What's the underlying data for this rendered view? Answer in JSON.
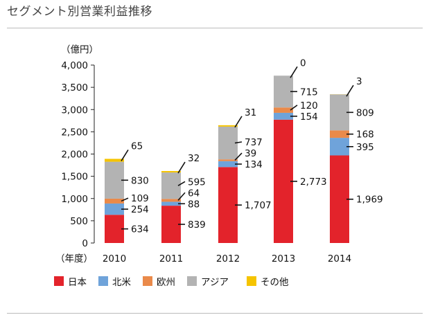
{
  "title": "セグメント別営業利益推移",
  "chart_data": {
    "type": "bar",
    "stacked": true,
    "title": "セグメント別営業利益推移",
    "ylabel": "（億円）",
    "xlabel": "（年度）",
    "ylim": [
      0,
      4000
    ],
    "yticks": [
      "0",
      "500",
      "1,000",
      "1,500",
      "2,000",
      "2,500",
      "3,000",
      "3,500",
      "4,000"
    ],
    "categories": [
      "2010",
      "2011",
      "2012",
      "2013",
      "2014"
    ],
    "series": [
      {
        "name": "日本",
        "color": "#e3232b",
        "values": [
          634,
          839,
          1707,
          2773,
          1969
        ],
        "labels": [
          "634",
          "839",
          "1,707",
          "2,773",
          "1,969"
        ]
      },
      {
        "name": "北米",
        "color": "#6fa3da",
        "values": [
          254,
          88,
          134,
          154,
          395
        ],
        "labels": [
          "254",
          "88",
          "134",
          "154",
          "395"
        ]
      },
      {
        "name": "欧州",
        "color": "#ea8a4a",
        "values": [
          109,
          64,
          39,
          120,
          168
        ],
        "labels": [
          "109",
          "64",
          "39",
          "120",
          "168"
        ]
      },
      {
        "name": "アジア",
        "color": "#b3b3b3",
        "values": [
          830,
          595,
          737,
          715,
          809
        ],
        "labels": [
          "830",
          "595",
          "737",
          "715",
          "809"
        ]
      },
      {
        "name": "その他",
        "color": "#f5c400",
        "values": [
          65,
          32,
          31,
          0,
          3
        ],
        "labels": [
          "65",
          "32",
          "31",
          "0",
          "3"
        ]
      }
    ],
    "legend_position": "bottom",
    "grid": false
  }
}
